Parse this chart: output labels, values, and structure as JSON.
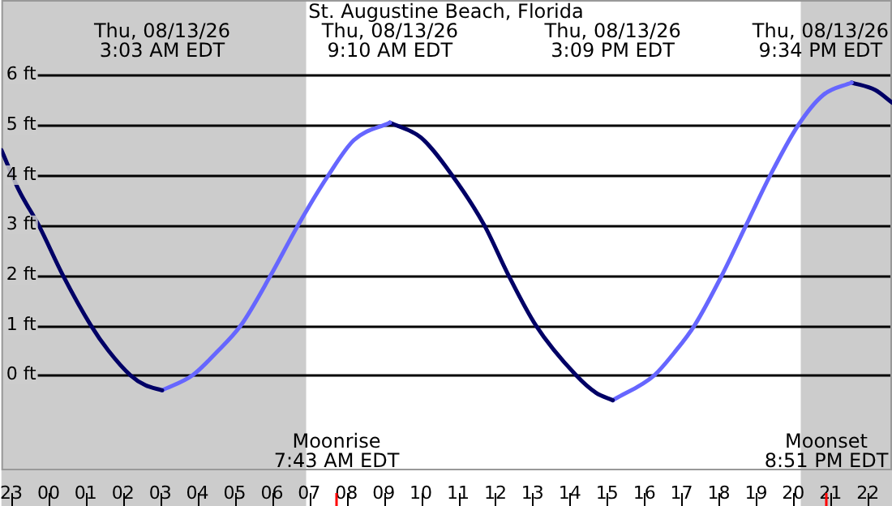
{
  "chart_data": {
    "type": "line",
    "title": "St. Augustine Beach, Florida",
    "xlim": [
      "--08-12T22:44",
      "--08-13T22:39"
    ],
    "ylim": [
      -1.9,
      7.5
    ],
    "xticks": [
      {
        "value": "--08-12T23:00",
        "label": "23"
      },
      {
        "value": "--08-13T00:00",
        "label": "00"
      },
      {
        "value": "--08-13T01:00",
        "label": "01"
      },
      {
        "value": "--08-13T02:00",
        "label": "02"
      },
      {
        "value": "--08-13T03:00",
        "label": "03"
      },
      {
        "value": "--08-13T04:00",
        "label": "04"
      },
      {
        "value": "--08-13T05:00",
        "label": "05"
      },
      {
        "value": "--08-13T06:00",
        "label": "06"
      },
      {
        "value": "--08-13T07:00",
        "label": "07"
      },
      {
        "value": "--08-13T08:00",
        "label": "08"
      },
      {
        "value": "--08-13T09:00",
        "label": "09"
      },
      {
        "value": "--08-13T10:00",
        "label": "10"
      },
      {
        "value": "--08-13T11:00",
        "label": "11"
      },
      {
        "value": "--08-13T12:00",
        "label": "12"
      },
      {
        "value": "--08-13T13:00",
        "label": "13"
      },
      {
        "value": "--08-13T14:00",
        "label": "14"
      },
      {
        "value": "--08-13T15:00",
        "label": "15"
      },
      {
        "value": "--08-13T16:00",
        "label": "16"
      },
      {
        "value": "--08-13T17:00",
        "label": "17"
      },
      {
        "value": "--08-13T18:00",
        "label": "18"
      },
      {
        "value": "--08-13T19:00",
        "label": "19"
      },
      {
        "value": "--08-13T20:00",
        "label": "20"
      },
      {
        "value": "--08-13T21:00",
        "label": "21"
      },
      {
        "value": "--08-13T22:00",
        "label": "22"
      }
    ],
    "yticks": [
      {
        "value": 0,
        "label": "0 ft"
      },
      {
        "value": 1,
        "label": "1 ft"
      },
      {
        "value": 2,
        "label": "2 ft"
      },
      {
        "value": 3,
        "label": "3 ft"
      },
      {
        "value": 4,
        "label": "4 ft"
      },
      {
        "value": 5,
        "label": "5 ft"
      },
      {
        "value": 6,
        "label": "6 ft"
      }
    ],
    "series": [
      {
        "color": "#000066",
        "x": [
          "--08-12T22:44",
          "--08-12T23:12",
          "--08-12T23:44",
          "--08-13T00:23",
          "--08-13T01:08",
          "--08-13T01:36",
          "--08-13T02:12",
          "--08-13T02:36",
          "--08-13T03:03"
        ],
        "values": [
          4.5,
          3.7,
          3,
          2,
          1,
          0.5,
          0,
          -0.2,
          -0.3
        ]
      },
      {
        "color": "#6666ff",
        "x": [
          "--08-13T03:03",
          "--08-13T03:52",
          "--08-13T04:30",
          "--08-13T05:10",
          "--08-13T05:58",
          "--08-13T06:42",
          "--08-13T07:31",
          "--08-13T08:12",
          "--08-13T09:10"
        ],
        "values": [
          -0.3,
          0,
          0.45,
          1,
          2,
          3,
          4,
          4.7,
          5.05
        ]
      },
      {
        "color": "#000066",
        "x": [
          "--08-13T09:10",
          "--08-13T10:00",
          "--08-13T10:50",
          "--08-13T11:42",
          "--08-13T12:21",
          "--08-13T13:05",
          "--08-13T14:10",
          "--08-13T14:42",
          "--08-13T15:09"
        ],
        "values": [
          5.05,
          4.75,
          4,
          3,
          2,
          1,
          0,
          -0.35,
          -0.5
        ]
      },
      {
        "color": "#6666ff",
        "x": [
          "--08-13T15:09",
          "--08-13T16:16",
          "--08-13T16:48",
          "--08-13T17:21",
          "--08-13T18:05",
          "--08-13T18:44",
          "--08-13T19:23",
          "--08-13T20:08",
          "--08-13T20:48",
          "--08-13T21:34"
        ],
        "values": [
          -0.5,
          0,
          0.45,
          1,
          2,
          3,
          4,
          5,
          5.6,
          5.85
        ]
      },
      {
        "color": "#000066",
        "x": [
          "--08-13T21:34",
          "--08-13T22:12",
          "--08-13T22:39"
        ],
        "values": [
          5.85,
          5.7,
          5.45
        ]
      }
    ],
    "bands": [
      {
        "axis": "x",
        "from": "--08-12T22:44",
        "to": "--08-13T06:55",
        "color": "#cccccc"
      },
      {
        "axis": "x",
        "from": "--08-13T20:12",
        "to": "--08-13T22:39",
        "color": "#cccccc"
      }
    ],
    "ref_lines": [
      {
        "axis": "x",
        "value": "--08-13T07:43",
        "label": "Moonrise\n7:43 AM EDT",
        "color": "#ff0000"
      },
      {
        "axis": "x",
        "value": "--08-13T20:51",
        "label": "Moonset\n8:51 PM EDT",
        "color": "#ff0000"
      }
    ],
    "annotations": [
      "Thu, 08/13/26\n3:03 AM EDT",
      "Thu, 08/13/26\n9:10 AM EDT",
      "Thu, 08/13/26\n3:09 PM EDT",
      "Thu, 08/13/26\n9:34 PM EDT"
    ],
    "grid": "y",
    "legend": false,
    "marker": "none",
    "line_style": "solid"
  }
}
